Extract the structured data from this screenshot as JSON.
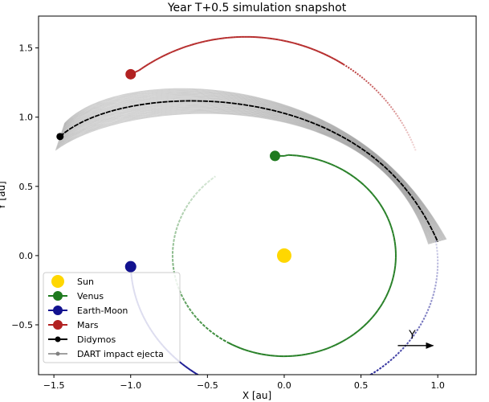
{
  "chart_data": {
    "type": "scatter",
    "title": "Year T+0.5 simulation snapshot",
    "xlabel": "X [au]",
    "ylabel": "Y [au]",
    "xlim": [
      -1.6,
      1.25
    ],
    "ylim": [
      -0.86,
      1.73
    ],
    "xticks": [
      -1.5,
      -1.0,
      -0.5,
      0.0,
      0.5,
      1.0
    ],
    "xtick_labels": [
      "−1.5",
      "−1.0",
      "−0.5",
      "0.0",
      "0.5",
      "1.0"
    ],
    "yticks": [
      -0.5,
      0.0,
      0.5,
      1.0,
      1.5
    ],
    "ytick_labels": [
      "−0.5",
      "0.0",
      "0.5",
      "1.0",
      "1.5"
    ],
    "grid": false,
    "legend_position": "lower-left",
    "series": [
      {
        "name": "Sun",
        "color": "#FFD700",
        "position": [
          0.0,
          0.0
        ]
      },
      {
        "name": "Venus",
        "color": "#1E7A1E",
        "position": [
          -0.06,
          0.72
        ]
      },
      {
        "name": "Earth-Moon",
        "color": "#12128F",
        "position": [
          -1.0,
          -0.08
        ]
      },
      {
        "name": "Mars",
        "color": "#B22222",
        "position": [
          -1.0,
          1.31
        ]
      },
      {
        "name": "Didymos",
        "color": "#000000",
        "position": [
          -1.46,
          0.86
        ]
      },
      {
        "name": "DART impact ejecta",
        "color": "#808080"
      }
    ],
    "annotation": {
      "text": "Y",
      "arrow_from": [
        0.74,
        -0.65
      ],
      "arrow_to": [
        0.97,
        -0.65
      ]
    }
  }
}
